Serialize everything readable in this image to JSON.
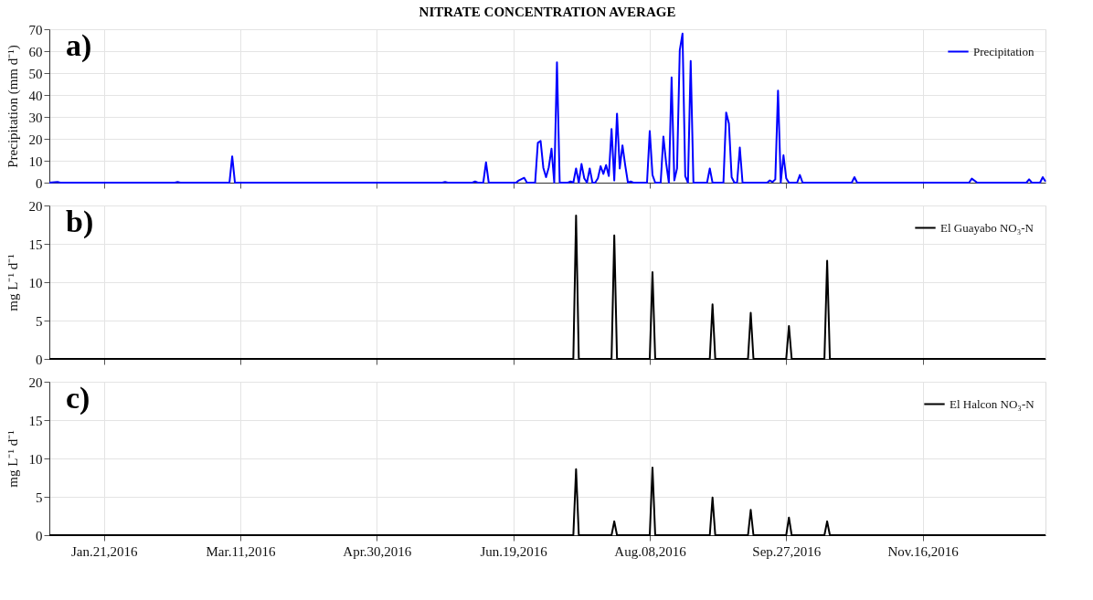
{
  "chart_data": [
    {
      "type": "line",
      "title": "NITRATE CONCENTRATION AVERAGE",
      "ylabel": "Precipitation (mm d⁻¹)",
      "annotations": [
        "a)"
      ],
      "grid": true,
      "legend": "top right",
      "tick_labels": "y",
      "line_style": "solid",
      "xlim": [
        "2016-01-01",
        "2016-12-31"
      ],
      "ylim": [
        0,
        70
      ],
      "yticks": [
        0,
        10,
        20,
        30,
        40,
        50,
        60,
        70
      ],
      "xticks": [
        {
          "value": "2016-01-21",
          "label": null
        },
        {
          "value": "2016-03-11",
          "label": null
        },
        {
          "value": "2016-04-30",
          "label": null
        },
        {
          "value": "2016-06-19",
          "label": null
        },
        {
          "value": "2016-08-08",
          "label": null
        },
        {
          "value": "2016-09-27",
          "label": null
        },
        {
          "value": "2016-11-16",
          "label": null
        }
      ],
      "x": [
        "2016-01-01",
        "2016-01-04",
        "2016-01-05",
        "2016-02-16",
        "2016-02-17",
        "2016-02-18",
        "2016-03-07",
        "2016-03-08",
        "2016-03-09",
        "2016-05-24",
        "2016-05-25",
        "2016-05-26",
        "2016-06-04",
        "2016-06-05",
        "2016-06-06",
        "2016-06-08",
        "2016-06-09",
        "2016-06-10",
        "2016-06-20",
        "2016-06-21",
        "2016-06-23",
        "2016-06-24",
        "2016-06-27",
        "2016-06-28",
        "2016-06-29",
        "2016-06-30",
        "2016-07-01",
        "2016-07-02",
        "2016-07-03",
        "2016-07-04",
        "2016-07-05",
        "2016-07-06",
        "2016-07-09",
        "2016-07-10",
        "2016-07-11",
        "2016-07-12",
        "2016-07-13",
        "2016-07-14",
        "2016-07-15",
        "2016-07-16",
        "2016-07-17",
        "2016-07-18",
        "2016-07-19",
        "2016-07-20",
        "2016-07-21",
        "2016-07-22",
        "2016-07-23",
        "2016-07-24",
        "2016-07-25",
        "2016-07-26",
        "2016-07-27",
        "2016-07-28",
        "2016-07-29",
        "2016-07-30",
        "2016-07-31",
        "2016-08-01",
        "2016-08-02",
        "2016-08-07",
        "2016-08-08",
        "2016-08-09",
        "2016-08-10",
        "2016-08-12",
        "2016-08-13",
        "2016-08-14",
        "2016-08-15",
        "2016-08-16",
        "2016-08-17",
        "2016-08-18",
        "2016-08-19",
        "2016-08-20",
        "2016-08-21",
        "2016-08-22",
        "2016-08-23",
        "2016-08-24",
        "2016-08-29",
        "2016-08-30",
        "2016-08-31",
        "2016-09-04",
        "2016-09-05",
        "2016-09-06",
        "2016-09-07",
        "2016-09-08",
        "2016-09-09",
        "2016-09-10",
        "2016-09-11",
        "2016-09-20",
        "2016-09-21",
        "2016-09-22",
        "2016-09-23",
        "2016-09-24",
        "2016-09-25",
        "2016-09-26",
        "2016-09-27",
        "2016-09-28",
        "2016-10-01",
        "2016-10-02",
        "2016-10-03",
        "2016-10-21",
        "2016-10-22",
        "2016-10-23",
        "2016-12-03",
        "2016-12-04",
        "2016-12-06",
        "2016-12-24",
        "2016-12-25",
        "2016-12-26",
        "2016-12-29",
        "2016-12-30",
        "2016-12-31"
      ],
      "series": [
        {
          "name": "Precipitation",
          "color": "#0000ff",
          "values": [
            0,
            0.3,
            0,
            0,
            0.3,
            0,
            0,
            12,
            0,
            0,
            0.3,
            0,
            0,
            0.5,
            0,
            0,
            9.3,
            0,
            0,
            1,
            2.2,
            0,
            0,
            18.2,
            19,
            6.8,
            2.5,
            7,
            15.5,
            0,
            54.9,
            0,
            0,
            0.5,
            0,
            6.5,
            0,
            8.5,
            2,
            0,
            6.5,
            0,
            0,
            2,
            7.5,
            4,
            8,
            3,
            24.5,
            1,
            31.5,
            6.5,
            17,
            8,
            0,
            0.5,
            0,
            0,
            23.5,
            3.5,
            0,
            0,
            21,
            9,
            0,
            48,
            1,
            6.5,
            60.5,
            68,
            3,
            0,
            55.5,
            0,
            0,
            6.5,
            0,
            0,
            32,
            27,
            2.5,
            0,
            0,
            16,
            0,
            0,
            1,
            0.3,
            1.5,
            42,
            0,
            12.5,
            2,
            0,
            0,
            3.5,
            0,
            0,
            2.5,
            0,
            0,
            1.8,
            0,
            0,
            1.5,
            0,
            0,
            2.5,
            0.5
          ]
        }
      ]
    },
    {
      "type": "line",
      "ylabel": "mg L⁻¹ d⁻¹",
      "annotations": [
        "b)"
      ],
      "grid": true,
      "legend": "top right",
      "tick_labels": "y",
      "line_style": "solid",
      "xlim": [
        "2016-01-01",
        "2016-12-31"
      ],
      "ylim": [
        0,
        20
      ],
      "yticks": [
        0,
        5,
        10,
        15,
        20
      ],
      "xticks": [
        {
          "value": "2016-01-21",
          "label": null
        },
        {
          "value": "2016-03-11",
          "label": null
        },
        {
          "value": "2016-04-30",
          "label": null
        },
        {
          "value": "2016-06-19",
          "label": null
        },
        {
          "value": "2016-08-08",
          "label": null
        },
        {
          "value": "2016-09-27",
          "label": null
        },
        {
          "value": "2016-11-16",
          "label": null
        }
      ],
      "x": [
        "2016-01-01",
        "2016-07-11",
        "2016-07-12",
        "2016-07-13",
        "2016-07-25",
        "2016-07-26",
        "2016-07-27",
        "2016-08-08",
        "2016-08-09",
        "2016-08-10",
        "2016-08-30",
        "2016-08-31",
        "2016-09-01",
        "2016-09-13",
        "2016-09-14",
        "2016-09-15",
        "2016-09-27",
        "2016-09-28",
        "2016-09-29",
        "2016-10-11",
        "2016-10-12",
        "2016-10-13",
        "2016-12-31"
      ],
      "series": [
        {
          "name": "El Guayabo NO₃-N",
          "color": "#000000",
          "values": [
            0,
            0,
            18.7,
            0,
            0,
            16.1,
            0,
            0,
            11.3,
            0,
            0,
            7.1,
            0,
            0,
            6.0,
            0,
            0,
            4.3,
            0,
            0,
            12.8,
            0,
            0
          ]
        }
      ]
    },
    {
      "type": "line",
      "ylabel": "mg L⁻¹ d⁻¹",
      "annotations": [
        "c)"
      ],
      "grid": true,
      "legend": "top right",
      "line_style": "solid",
      "xlim": [
        "2016-01-01",
        "2016-12-31"
      ],
      "ylim": [
        0,
        20
      ],
      "yticks": [
        0,
        5,
        10,
        15,
        20
      ],
      "xticks": [
        {
          "value": "2016-01-21",
          "label": "Jan.21,2016"
        },
        {
          "value": "2016-03-11",
          "label": "Mar.11,2016"
        },
        {
          "value": "2016-04-30",
          "label": "Apr.30,2016"
        },
        {
          "value": "2016-06-19",
          "label": "Jun.19,2016"
        },
        {
          "value": "2016-08-08",
          "label": "Aug.08,2016"
        },
        {
          "value": "2016-09-27",
          "label": "Sep.27,2016"
        },
        {
          "value": "2016-11-16",
          "label": "Nov.16,2016"
        }
      ],
      "x": [
        "2016-01-01",
        "2016-07-11",
        "2016-07-12",
        "2016-07-13",
        "2016-07-25",
        "2016-07-26",
        "2016-07-27",
        "2016-08-08",
        "2016-08-09",
        "2016-08-10",
        "2016-08-30",
        "2016-08-31",
        "2016-09-01",
        "2016-09-13",
        "2016-09-14",
        "2016-09-15",
        "2016-09-27",
        "2016-09-28",
        "2016-09-29",
        "2016-10-11",
        "2016-10-12",
        "2016-10-13",
        "2016-12-31"
      ],
      "series": [
        {
          "name": "El Halcon NO₃-N",
          "color": "#000000",
          "values": [
            0,
            0,
            8.6,
            0,
            0,
            1.8,
            0,
            0,
            8.8,
            0,
            0,
            4.9,
            0,
            0,
            3.3,
            0,
            0,
            2.3,
            0,
            0,
            1.8,
            0,
            0
          ]
        }
      ]
    }
  ]
}
